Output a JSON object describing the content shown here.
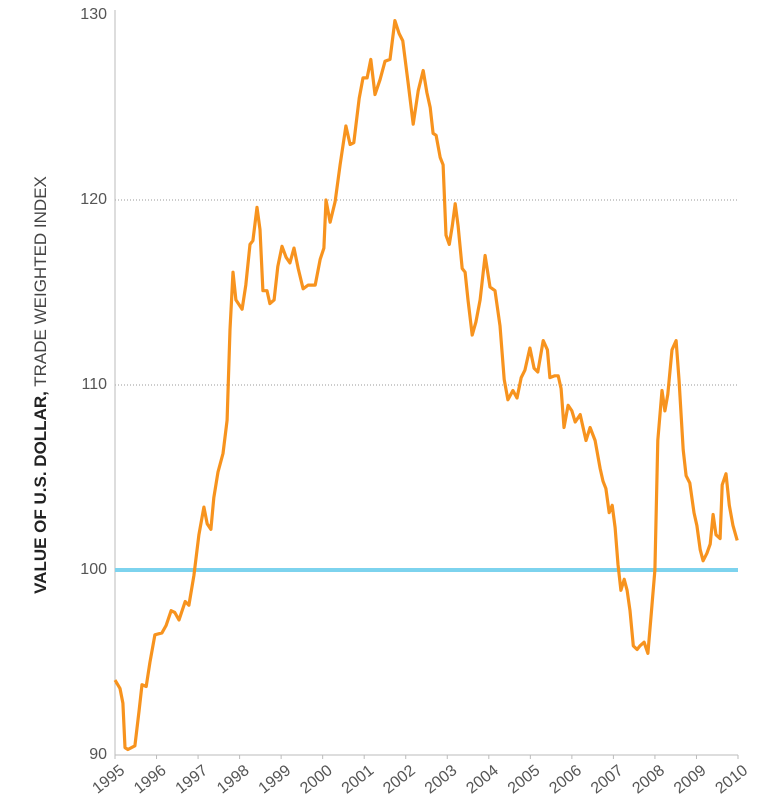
{
  "chart_data": {
    "type": "line",
    "ylabel_bold": "VALUE OF U.S. DOLLAR,",
    "ylabel": "TRADE WEIGHTED INDEX",
    "xlim": [
      1995,
      2010
    ],
    "xticks": [
      1995,
      1996,
      1997,
      1998,
      1999,
      2000,
      2001,
      2002,
      2003,
      2004,
      2005,
      2006,
      2007,
      2008,
      2009,
      2010
    ],
    "ylim": [
      90,
      130
    ],
    "yticks": [
      90,
      100,
      110,
      120,
      130
    ],
    "grid": true,
    "reference_line": {
      "value": 100,
      "color": "#7dd3ee"
    },
    "series": [
      {
        "name": "U.S. dollar",
        "color": "#f7931e",
        "x": [
          1995.0,
          1995.12,
          1995.19,
          1995.24,
          1995.31,
          1995.48,
          1995.58,
          1995.65,
          1995.75,
          1995.84,
          1995.96,
          1996.13,
          1996.23,
          1996.35,
          1996.44,
          1996.54,
          1996.69,
          1996.78,
          1996.9,
          1997.02,
          1997.14,
          1997.22,
          1997.31,
          1997.38,
          1997.48,
          1997.6,
          1997.7,
          1997.77,
          1997.84,
          1997.91,
          1998.06,
          1998.15,
          1998.25,
          1998.32,
          1998.42,
          1998.49,
          1998.56,
          1998.66,
          1998.73,
          1998.83,
          1998.92,
          1999.02,
          1999.12,
          1999.21,
          1999.31,
          1999.41,
          1999.53,
          1999.65,
          1999.82,
          1999.94,
          2000.03,
          2000.08,
          2000.18,
          2000.3,
          2000.42,
          2000.56,
          2000.66,
          2000.75,
          2000.88,
          2000.97,
          2001.07,
          2001.16,
          2001.26,
          2001.38,
          2001.5,
          2001.62,
          2001.74,
          2001.84,
          2001.93,
          2002.06,
          2002.18,
          2002.3,
          2002.42,
          2002.51,
          2002.59,
          2002.66,
          2002.73,
          2002.83,
          2002.9,
          2002.97,
          2003.05,
          2003.12,
          2003.19,
          2003.26,
          2003.36,
          2003.43,
          2003.5,
          2003.6,
          2003.69,
          2003.79,
          2003.91,
          2004.03,
          2004.15,
          2004.27,
          2004.37,
          2004.46,
          2004.58,
          2004.68,
          2004.78,
          2004.87,
          2004.99,
          2005.09,
          2005.18,
          2005.31,
          2005.41,
          2005.47,
          2005.59,
          2005.67,
          2005.74,
          2005.81,
          2005.91,
          2006.0,
          2006.08,
          2006.2,
          2006.34,
          2006.44,
          2006.56,
          2006.68,
          2006.75,
          2006.82,
          2006.9,
          2006.97,
          2007.04,
          2007.11,
          2007.18,
          2007.26,
          2007.33,
          2007.4,
          2007.48,
          2007.57,
          2007.64,
          2007.74,
          2007.83,
          2007.91,
          2008.0,
          2008.07,
          2008.17,
          2008.24,
          2008.31,
          2008.41,
          2008.51,
          2008.58,
          2008.68,
          2008.75,
          2008.84,
          2008.94,
          2009.01,
          2009.09,
          2009.16,
          2009.25,
          2009.33,
          2009.4,
          2009.47,
          2009.57,
          2009.62,
          2009.71,
          2009.79,
          2009.88,
          2009.98
        ],
        "values": [
          94.05,
          93.6,
          92.8,
          90.4,
          90.3,
          90.5,
          92.4,
          93.8,
          93.7,
          95.0,
          96.5,
          96.6,
          97.0,
          97.8,
          97.7,
          97.3,
          98.3,
          98.1,
          99.7,
          101.9,
          103.4,
          102.5,
          102.2,
          103.9,
          105.3,
          106.3,
          108.1,
          113.0,
          116.1,
          114.6,
          114.1,
          115.4,
          117.6,
          117.8,
          119.6,
          118.4,
          115.1,
          115.1,
          114.4,
          114.6,
          116.4,
          117.5,
          116.9,
          116.6,
          117.4,
          116.3,
          115.2,
          115.4,
          115.4,
          116.8,
          117.4,
          120.0,
          118.8,
          119.9,
          121.9,
          124.0,
          123.0,
          123.1,
          125.5,
          126.6,
          126.6,
          127.6,
          125.7,
          126.5,
          127.5,
          127.6,
          129.7,
          129.0,
          128.6,
          126.3,
          124.1,
          125.9,
          127.0,
          125.8,
          125.0,
          123.6,
          123.5,
          122.3,
          121.9,
          118.1,
          117.6,
          118.6,
          119.8,
          118.6,
          116.3,
          116.1,
          114.6,
          112.7,
          113.4,
          114.6,
          117.0,
          115.3,
          115.1,
          113.2,
          110.3,
          109.2,
          109.7,
          109.3,
          110.4,
          110.8,
          112.0,
          110.9,
          110.7,
          112.4,
          111.9,
          110.4,
          110.5,
          110.5,
          109.8,
          107.7,
          108.9,
          108.6,
          108.0,
          108.4,
          107.0,
          107.7,
          107.0,
          105.5,
          104.8,
          104.4,
          103.1,
          103.5,
          102.3,
          100.3,
          98.9,
          99.5,
          98.9,
          97.8,
          95.9,
          95.7,
          95.9,
          96.1,
          95.5,
          97.6,
          100.0,
          107.0,
          109.7,
          108.6,
          109.5,
          111.9,
          112.4,
          110.3,
          106.5,
          105.1,
          104.7,
          103.1,
          102.4,
          101.1,
          100.5,
          100.9,
          101.4,
          103.0,
          101.9,
          101.7,
          104.6,
          105.2,
          103.5,
          102.4,
          101.6
        ]
      }
    ]
  }
}
